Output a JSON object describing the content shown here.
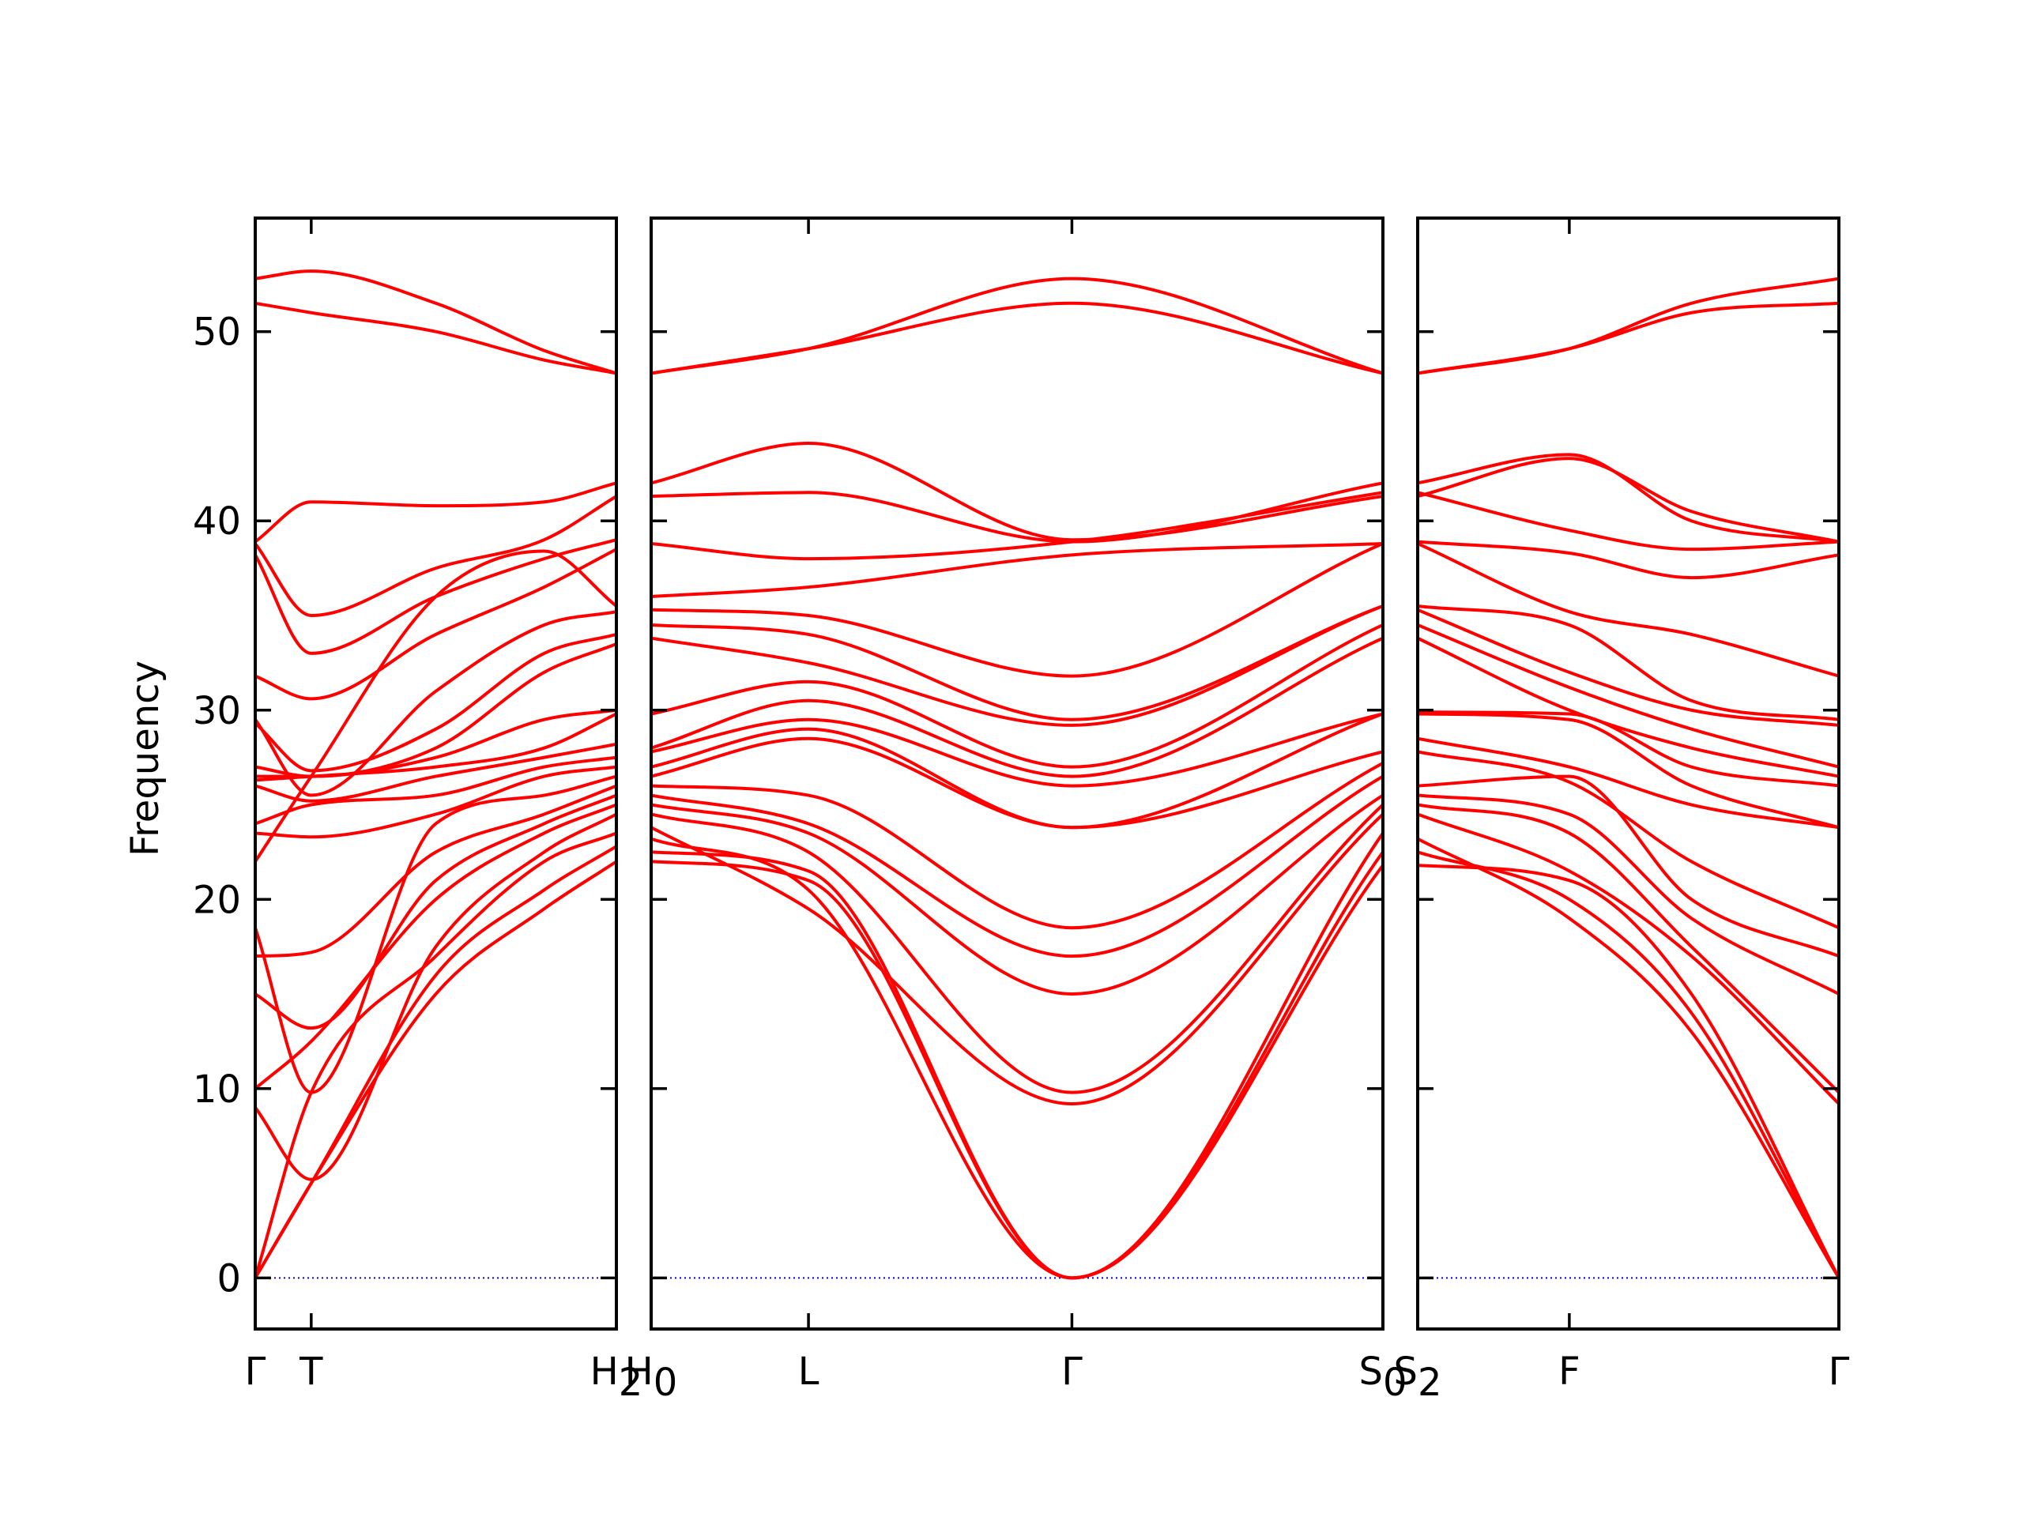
{
  "chart_data": {
    "type": "line",
    "ylabel": "Frequency",
    "ylim": [
      -2.7,
      56
    ],
    "yticks": [
      0,
      10,
      20,
      30,
      40,
      50
    ],
    "band_color": "#ff0000",
    "zero_line_color": "#0000ff",
    "panels": [
      {
        "xticks": [
          {
            "pos": 0.0,
            "label": "Γ"
          },
          {
            "pos": 0.155,
            "label": "T"
          },
          {
            "pos": 1.0,
            "label": "H",
            "sub": "2"
          }
        ],
        "bands": [
          {
            "x": [
              0,
              0.155,
              0.5,
              0.8,
              1
            ],
            "y": [
              0,
              5,
              15,
              19.5,
              22
            ]
          },
          {
            "x": [
              0,
              0.155,
              0.5,
              0.8,
              1
            ],
            "y": [
              0,
              5,
              16,
              20.5,
              22.8
            ]
          },
          {
            "x": [
              0,
              0.155,
              0.5,
              0.8,
              1
            ],
            "y": [
              0,
              9.8,
              17,
              22,
              23.5
            ]
          },
          {
            "x": [
              0,
              0.155,
              0.5,
              0.8,
              1
            ],
            "y": [
              9,
              5.2,
              17.5,
              22.5,
              24.5
            ]
          },
          {
            "x": [
              0,
              0.155,
              0.5,
              0.8,
              1
            ],
            "y": [
              10,
              12.5,
              20,
              23.5,
              25
            ]
          },
          {
            "x": [
              0,
              0.155,
              0.5,
              0.8,
              1
            ],
            "y": [
              15,
              13.2,
              21,
              24,
              25.5
            ]
          },
          {
            "x": [
              0,
              0.155,
              0.5,
              0.8,
              1
            ],
            "y": [
              17,
              17.2,
              22.5,
              24.5,
              26
            ]
          },
          {
            "x": [
              0,
              0.155,
              0.5,
              0.8,
              1
            ],
            "y": [
              18.5,
              9.8,
              24,
              25.5,
              26.5
            ]
          },
          {
            "x": [
              0,
              0.155,
              0.5,
              0.8,
              1
            ],
            "y": [
              23.5,
              23.3,
              24.5,
              26.5,
              27
            ]
          },
          {
            "x": [
              0,
              0.155,
              0.5,
              0.8,
              1
            ],
            "y": [
              24,
              25,
              25.5,
              27,
              27.5
            ]
          },
          {
            "x": [
              0,
              0.155,
              0.5,
              0.8,
              1
            ],
            "y": [
              26,
              25.2,
              26.5,
              27.5,
              28.2
            ]
          },
          {
            "x": [
              0,
              0.155,
              0.5,
              0.8,
              1
            ],
            "y": [
              26.3,
              26.5,
              27,
              28,
              29.8
            ]
          },
          {
            "x": [
              0,
              0.155,
              0.5,
              0.8,
              1
            ],
            "y": [
              26.5,
              26.5,
              27.5,
              29.5,
              30
            ]
          },
          {
            "x": [
              0,
              0.155,
              0.5,
              0.8,
              1
            ],
            "y": [
              27,
              26.5,
              28,
              32,
              33.5
            ]
          },
          {
            "x": [
              0,
              0.155,
              0.5,
              0.8,
              1
            ],
            "y": [
              29.3,
              26.8,
              29,
              33,
              34
            ]
          },
          {
            "x": [
              0,
              0.155,
              0.5,
              0.8,
              1
            ],
            "y": [
              29.5,
              25.5,
              31,
              34.5,
              35.2
            ]
          },
          {
            "x": [
              0,
              0.155,
              0.5,
              0.8,
              1
            ],
            "y": [
              31.8,
              30.6,
              34,
              36.5,
              38.5
            ]
          },
          {
            "x": [
              0,
              0.155,
              0.5,
              0.8,
              1
            ],
            "y": [
              38.2,
              33,
              36,
              38,
              39
            ]
          },
          {
            "x": [
              0,
              0.155,
              0.5,
              0.8,
              1
            ],
            "y": [
              38.8,
              35,
              37.5,
              39,
              41.3
            ]
          },
          {
            "x": [
              0,
              0.155,
              0.5,
              0.8,
              1
            ],
            "y": [
              38.9,
              41,
              40.8,
              41,
              42
            ]
          },
          {
            "x": [
              0,
              0.155,
              0.5,
              0.8,
              1
            ],
            "y": [
              22,
              26.5,
              36,
              38.4,
              35.5
            ]
          },
          {
            "x": [
              0,
              0.155,
              0.5,
              0.8,
              1
            ],
            "y": [
              51.5,
              51,
              50,
              48.5,
              47.8
            ]
          },
          {
            "x": [
              0,
              0.155,
              0.5,
              0.8,
              1
            ],
            "y": [
              52.8,
              53.2,
              51.5,
              49,
              47.8
            ]
          }
        ]
      },
      {
        "xticks": [
          {
            "pos": 0.0,
            "label": "H",
            "sub": "0"
          },
          {
            "pos": 0.215,
            "label": "L"
          },
          {
            "pos": 0.575,
            "label": "Γ"
          },
          {
            "pos": 1.0,
            "label": "S",
            "sub": "0"
          }
        ],
        "bands": [
          {
            "x": [
              0,
              0.215,
              0.575,
              1
            ],
            "y": [
              22,
              21,
              0,
              21.8
            ]
          },
          {
            "x": [
              0,
              0.215,
              0.575,
              1
            ],
            "y": [
              22.5,
              21.5,
              0,
              22.5
            ]
          },
          {
            "x": [
              0,
              0.215,
              0.575,
              1
            ],
            "y": [
              23.2,
              20.5,
              0,
              23.5
            ]
          },
          {
            "x": [
              0,
              0.215,
              0.575,
              1
            ],
            "y": [
              23.8,
              19.5,
              9.2,
              24.5
            ]
          },
          {
            "x": [
              0,
              0.215,
              0.575,
              1
            ],
            "y": [
              24.5,
              22.5,
              9.8,
              25
            ]
          },
          {
            "x": [
              0,
              0.215,
              0.575,
              1
            ],
            "y": [
              25,
              23.5,
              15,
              25.5
            ]
          },
          {
            "x": [
              0,
              0.215,
              0.575,
              1
            ],
            "y": [
              25.5,
              24,
              17,
              26.5
            ]
          },
          {
            "x": [
              0,
              0.215,
              0.575,
              1
            ],
            "y": [
              26,
              25.5,
              18.5,
              27.2
            ]
          },
          {
            "x": [
              0,
              0.215,
              0.575,
              1
            ],
            "y": [
              26.5,
              28.5,
              23.8,
              27.8
            ]
          },
          {
            "x": [
              0,
              0.215,
              0.575,
              1
            ],
            "y": [
              27,
              29,
              23.8,
              29.8
            ]
          },
          {
            "x": [
              0,
              0.215,
              0.575,
              1
            ],
            "y": [
              27.8,
              29.5,
              26,
              29.8
            ]
          },
          {
            "x": [
              0,
              0.215,
              0.575,
              1
            ],
            "y": [
              28,
              30.5,
              26.5,
              33.8
            ]
          },
          {
            "x": [
              0,
              0.215,
              0.575,
              1
            ],
            "y": [
              29.8,
              31.5,
              27,
              34.5
            ]
          },
          {
            "x": [
              0,
              0.215,
              0.575,
              1
            ],
            "y": [
              33.8,
              32.5,
              29.2,
              35.5
            ]
          },
          {
            "x": [
              0,
              0.215,
              0.575,
              1
            ],
            "y": [
              34.5,
              34,
              29.5,
              35.5
            ]
          },
          {
            "x": [
              0,
              0.215,
              0.575,
              1
            ],
            "y": [
              35.3,
              35,
              31.8,
              38.8
            ]
          },
          {
            "x": [
              0,
              0.215,
              0.575,
              1
            ],
            "y": [
              36,
              36.5,
              38.2,
              38.8
            ]
          },
          {
            "x": [
              0,
              0.215,
              0.575,
              1
            ],
            "y": [
              38.8,
              38,
              38.9,
              41.5
            ]
          },
          {
            "x": [
              0,
              0.215,
              0.575,
              1
            ],
            "y": [
              41.3,
              41.5,
              38.9,
              42
            ]
          },
          {
            "x": [
              0,
              0.215,
              0.575,
              1
            ],
            "y": [
              42,
              44.1,
              39,
              41.3
            ]
          },
          {
            "x": [
              0,
              0.215,
              0.575,
              1
            ],
            "y": [
              47.8,
              49.1,
              51.5,
              47.8
            ]
          },
          {
            "x": [
              0,
              0.215,
              0.575,
              1
            ],
            "y": [
              47.8,
              49.1,
              52.8,
              47.8
            ]
          }
        ]
      },
      {
        "xticks": [
          {
            "pos": 0.0,
            "label": "S",
            "sub": "2"
          },
          {
            "pos": 0.36,
            "label": "F"
          },
          {
            "pos": 1.0,
            "label": "Γ"
          }
        ],
        "bands": [
          {
            "x": [
              0,
              0.36,
              0.65,
              1
            ],
            "y": [
              21.8,
              21,
              15,
              0
            ]
          },
          {
            "x": [
              0,
              0.36,
              0.65,
              1
            ],
            "y": [
              22.5,
              20,
              14,
              0
            ]
          },
          {
            "x": [
              0,
              0.36,
              0.65,
              1
            ],
            "y": [
              23.2,
              19,
              13,
              0
            ]
          },
          {
            "x": [
              0,
              0.36,
              0.65,
              1
            ],
            "y": [
              24.5,
              21.5,
              17,
              9.2
            ]
          },
          {
            "x": [
              0,
              0.36,
              0.65,
              1
            ],
            "y": [
              25,
              23.5,
              17.5,
              9.8
            ]
          },
          {
            "x": [
              0,
              0.36,
              0.65,
              1
            ],
            "y": [
              25.5,
              24.5,
              19,
              15
            ]
          },
          {
            "x": [
              0,
              0.36,
              0.65,
              1
            ],
            "y": [
              26,
              26.5,
              20,
              17
            ]
          },
          {
            "x": [
              0,
              0.36,
              0.65,
              1
            ],
            "y": [
              27.8,
              26.2,
              22,
              18.5
            ]
          },
          {
            "x": [
              0,
              0.36,
              0.65,
              1
            ],
            "y": [
              28.5,
              27,
              25,
              23.8
            ]
          },
          {
            "x": [
              0,
              0.36,
              0.65,
              1
            ],
            "y": [
              29.8,
              29.5,
              26,
              23.8
            ]
          },
          {
            "x": [
              0,
              0.36,
              0.65,
              1
            ],
            "y": [
              29.9,
              29.8,
              27,
              26
            ]
          },
          {
            "x": [
              0,
              0.36,
              0.65,
              1
            ],
            "y": [
              33.8,
              30,
              28,
              26.5
            ]
          },
          {
            "x": [
              0,
              0.36,
              0.65,
              1
            ],
            "y": [
              34.5,
              31.2,
              29,
              27
            ]
          },
          {
            "x": [
              0,
              0.36,
              0.65,
              1
            ],
            "y": [
              35.3,
              32,
              30,
              29.2
            ]
          },
          {
            "x": [
              0,
              0.36,
              0.65,
              1
            ],
            "y": [
              35.5,
              34.5,
              30.5,
              29.5
            ]
          },
          {
            "x": [
              0,
              0.36,
              0.65,
              1
            ],
            "y": [
              38.8,
              35.2,
              34,
              31.8
            ]
          },
          {
            "x": [
              0,
              0.36,
              0.65,
              1
            ],
            "y": [
              38.9,
              38.3,
              37,
              38.2
            ]
          },
          {
            "x": [
              0,
              0.36,
              0.65,
              1
            ],
            "y": [
              41.5,
              39.5,
              38.5,
              38.9
            ]
          },
          {
            "x": [
              0,
              0.36,
              0.65,
              1
            ],
            "y": [
              42,
              43.5,
              40,
              38.9
            ]
          },
          {
            "x": [
              0,
              0.36,
              0.65,
              1
            ],
            "y": [
              41.3,
              43.3,
              40.5,
              38.9
            ]
          },
          {
            "x": [
              0,
              0.36,
              0.65,
              1
            ],
            "y": [
              47.8,
              49.1,
              51,
              51.5
            ]
          },
          {
            "x": [
              0,
              0.36,
              0.65,
              1
            ],
            "y": [
              47.8,
              49.1,
              51.5,
              52.8
            ]
          }
        ]
      }
    ]
  }
}
